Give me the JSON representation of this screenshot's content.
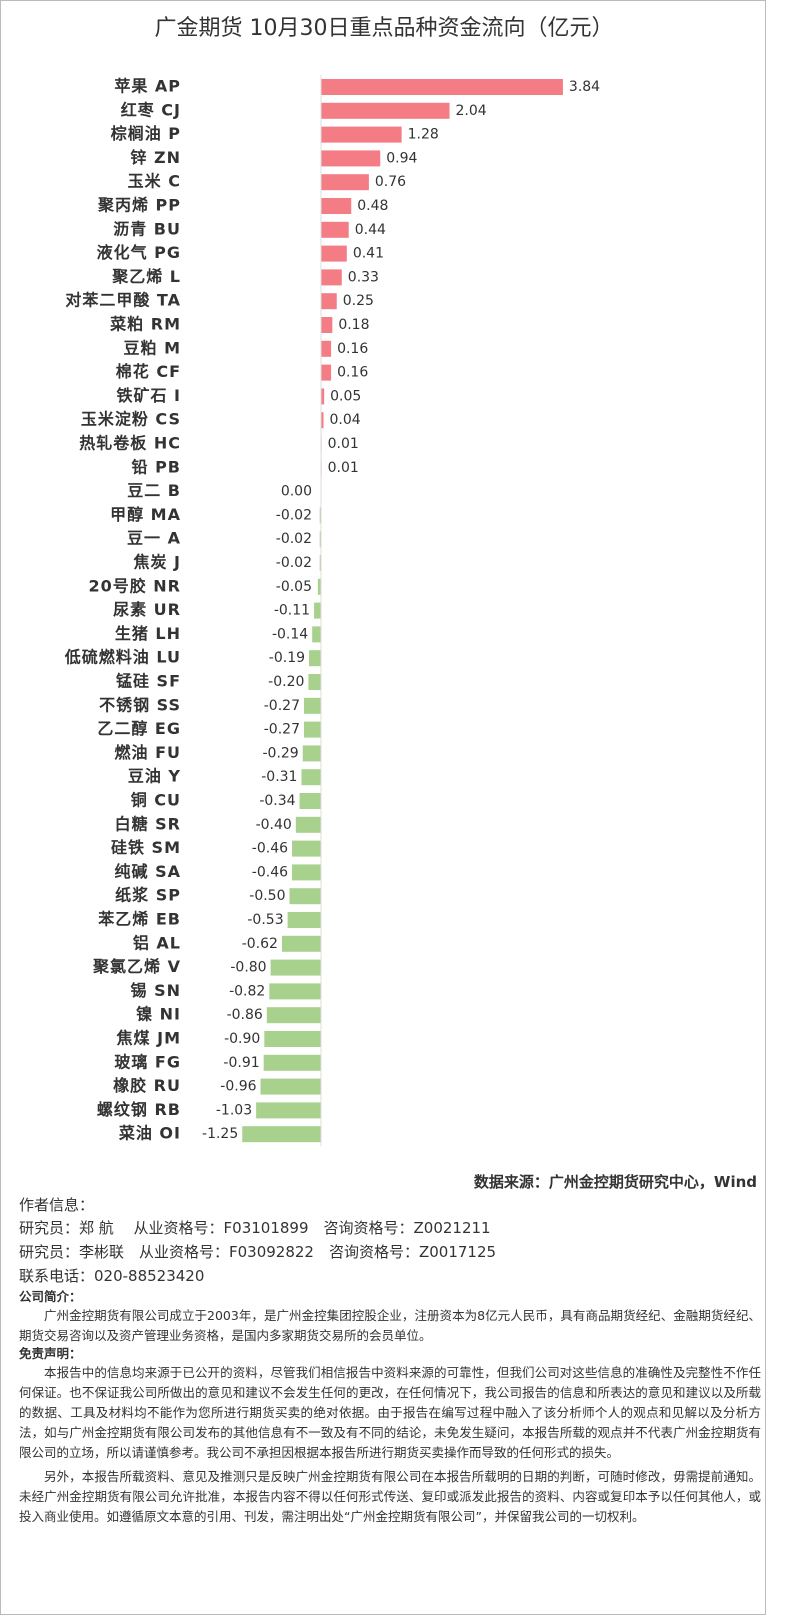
{
  "chart_data": {
    "type": "barh",
    "title": "广金期货 10月30日重点品种资金流向（亿元）",
    "categories": [
      "苹果 AP",
      "红枣 CJ",
      "棕榈油 P",
      "锌 ZN",
      "玉米 C",
      "聚丙烯 PP",
      "沥青 BU",
      "液化气 PG",
      "聚乙烯 L",
      "对苯二甲酸 TA",
      "菜粕 RM",
      "豆粕 M",
      "棉花 CF",
      "铁矿石 I",
      "玉米淀粉 CS",
      "热轧卷板 HC",
      "铅 PB",
      "豆二 B",
      "甲醇 MA",
      "豆一 A",
      "焦炭 J",
      "20号胶 NR",
      "尿素 UR",
      "生猪 LH",
      "低硫燃料油 LU",
      "锰硅 SF",
      "不锈钢 SS",
      "乙二醇 EG",
      "燃油 FU",
      "豆油 Y",
      "铜 CU",
      "白糖 SR",
      "硅铁 SM",
      "纯碱 SA",
      "纸浆 SP",
      "苯乙烯 EB",
      "铝 AL",
      "聚氯乙烯 V",
      "锡 SN",
      "镍 NI",
      "焦煤 JM",
      "玻璃 FG",
      "橡胶 RU",
      "螺纹钢 RB",
      "菜油 OI"
    ],
    "values": [
      3.84,
      2.04,
      1.28,
      0.94,
      0.76,
      0.48,
      0.44,
      0.41,
      0.33,
      0.25,
      0.18,
      0.16,
      0.16,
      0.05,
      0.04,
      0.01,
      0.01,
      0.0,
      -0.02,
      -0.02,
      -0.02,
      -0.05,
      -0.11,
      -0.14,
      -0.19,
      -0.2,
      -0.27,
      -0.27,
      -0.29,
      -0.31,
      -0.34,
      -0.4,
      -0.46,
      -0.46,
      -0.5,
      -0.53,
      -0.62,
      -0.8,
      -0.82,
      -0.86,
      -0.9,
      -0.91,
      -0.96,
      -1.03,
      -1.25
    ],
    "value_labels": [
      "3.84",
      "2.04",
      "1.28",
      "0.94",
      "0.76",
      "0.48",
      "0.44",
      "0.41",
      "0.33",
      "0.25",
      "0.18",
      "0.16",
      "0.16",
      "0.05",
      "0.04",
      "0.01",
      "0.01",
      "0.00",
      "-0.02",
      "-0.02",
      "-0.02",
      "-0.05",
      "-0.11",
      "-0.14",
      "-0.19",
      "-0.20",
      "-0.27",
      "-0.27",
      "-0.29",
      "-0.31",
      "-0.34",
      "-0.40",
      "-0.46",
      "-0.46",
      "-0.50",
      "-0.53",
      "-0.62",
      "-0.80",
      "-0.82",
      "-0.86",
      "-0.90",
      "-0.91",
      "-0.96",
      "-1.03",
      "-1.25"
    ],
    "positive_color": "#f47c84",
    "negative_color": "#a9d18e",
    "xlim": [
      -1.5,
      4
    ]
  },
  "footer": {
    "source": "数据来源：广州金控期货研究中心，Wind",
    "author_heading": "作者信息：",
    "analysts": [
      "研究员：郑 航　 从业资格号：F03101899　咨询资格号：Z0021211",
      "研究员：李彬联　从业资格号：F03092822　咨询资格号：Z0017125"
    ],
    "phone": "联系电话：020-88523420",
    "company_heading": "公司简介：",
    "company_text": "广州金控期货有限公司成立于2003年，是广州金控集团控股企业，注册资本为8亿元人民币，具有商品期货经纪、金融期货经纪、期货交易咨询以及资产管理业务资格，是国内多家期货交易所的会员单位。",
    "disclaimer_heading": "免责声明：",
    "disclaimer": [
      "本报告中的信息均来源于已公开的资料，尽管我们相信报告中资料来源的可靠性，但我们公司对这些信息的准确性及完整性不作任何保证。也不保证我公司所做出的意见和建议不会发生任何的更改，在任何情况下，我公司报告的信息和所表达的意见和建议以及所载的数据、工具及材料均不能作为您所进行期货买卖的绝对依据。由于报告在编写过程中融入了该分析师个人的观点和见解以及分析方法，如与广州金控期货有限公司发布的其他信息有不一致及有不同的结论，未免发生疑问，本报告所载的观点并不代表广州金控期货有限公司的立场，所以请谨慎参考。我公司不承担因根据本报告所进行期货买卖操作而导致的任何形式的损失。",
      "另外，本报告所载资料、意见及推测只是反映广州金控期货有限公司在本报告所载明的日期的判断，可随时修改，毋需提前通知。未经广州金控期货有限公司允许批准，本报告内容不得以任何形式传送、复印或派发此报告的资料、内容或复印本予以任何其他人，或投入商业使用。如遵循原文本意的引用、刊发，需注明出处“广州金控期货有限公司”，并保留我公司的一切权利。"
    ]
  }
}
